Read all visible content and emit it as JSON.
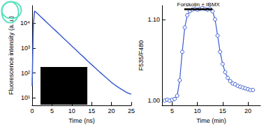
{
  "chart_data": [
    {
      "type": "line",
      "x_label": "Time (ns)",
      "y_label": "Fluorescence intensity (a.u.)",
      "log": "y",
      "x": [
        0,
        0.3,
        0.6,
        1,
        2,
        3,
        4,
        5,
        6,
        7,
        8,
        9,
        10,
        11,
        12,
        13,
        14,
        15,
        16,
        17,
        18,
        19,
        20,
        21,
        22,
        23,
        24,
        25
      ],
      "values": [
        30,
        8000,
        30000,
        27000,
        19000,
        13500,
        9500,
        6700,
        4800,
        3400,
        2400,
        1700,
        1200,
        850,
        600,
        430,
        300,
        215,
        155,
        110,
        80,
        58,
        42,
        32,
        25,
        20,
        16,
        14
      ],
      "color": "#3a5bd0",
      "xlim": [
        0,
        25
      ],
      "xticks": [
        0,
        5,
        10,
        15,
        20,
        25
      ],
      "ylim": [
        5,
        50000
      ],
      "yticks": [
        {
          "value": 10,
          "label": "10¹"
        },
        {
          "value": 100,
          "label": "10²"
        },
        {
          "value": 1000,
          "label": "10³"
        },
        {
          "value": 10000,
          "label": "10⁴"
        }
      ]
    },
    {
      "type": "line",
      "x_label": "Time (min)",
      "y_label": "F535/F480",
      "marker": "circle",
      "x": [
        3.5,
        4,
        4.5,
        5,
        5.5,
        6,
        6.5,
        7,
        7.5,
        8,
        8.5,
        9,
        9.5,
        10,
        10.5,
        11,
        11.5,
        12,
        12.5,
        13,
        13.5,
        14,
        14.5,
        15,
        15.5,
        16,
        16.5,
        17,
        17.5,
        18,
        18.5,
        19,
        19.5,
        20,
        20.5,
        21
      ],
      "values": [
        1.0,
        1.001,
        1.0,
        1.001,
        1.002,
        1.006,
        1.025,
        1.06,
        1.09,
        1.105,
        1.11,
        1.112,
        1.113,
        1.112,
        1.113,
        1.114,
        1.113,
        1.112,
        1.113,
        1.11,
        1.1,
        1.08,
        1.06,
        1.045,
        1.035,
        1.028,
        1.024,
        1.021,
        1.02,
        1.018,
        1.017,
        1.016,
        1.015,
        1.014,
        1.013,
        1.013
      ],
      "color": "#3a5bd0",
      "xlim": [
        3,
        22.5
      ],
      "xticks": [
        5,
        10,
        15,
        20
      ],
      "ylim": [
        0.994,
        1.117
      ],
      "yticks": [
        {
          "value": 1,
          "label": "1.00"
        },
        {
          "value": 1.1,
          "label": "1.10"
        }
      ],
      "annotations": [
        {
          "text": "Forskolin + IBMX",
          "x_start": 7.4,
          "x_end": 13
        }
      ]
    }
  ]
}
